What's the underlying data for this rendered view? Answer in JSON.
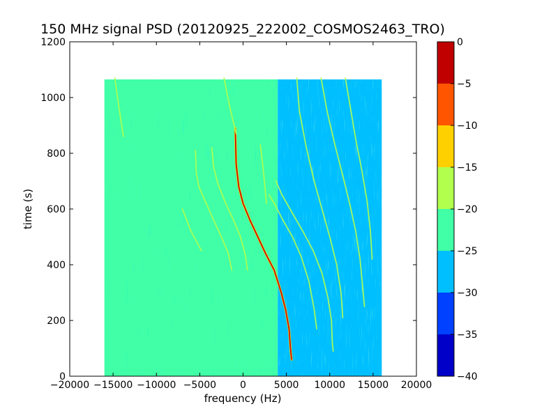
{
  "chart_data": {
    "type": "heatmap",
    "title": "150 MHz signal PSD (20120925_222002_COSMOS2463_TRO)",
    "xlabel": "frequency (Hz)",
    "ylabel": "time (s)",
    "xlim": [
      -20000,
      20000
    ],
    "ylim": [
      0,
      1200
    ],
    "x_ticks": [
      -20000,
      -15000,
      -10000,
      -5000,
      0,
      5000,
      10000,
      15000,
      20000
    ],
    "x_tick_labels": [
      "−20000",
      "−15000",
      "−10000",
      "−5000",
      "0",
      "5000",
      "10000",
      "15000",
      "20000"
    ],
    "y_ticks": [
      0,
      200,
      400,
      600,
      800,
      1000,
      1200
    ],
    "y_tick_labels": [
      "0",
      "200",
      "400",
      "600",
      "800",
      "1000",
      "1200"
    ],
    "data_extent": {
      "x": [
        -16000,
        16000
      ],
      "y": [
        0,
        1065
      ]
    },
    "background_levels": [
      {
        "x_range": [
          -16000,
          4000
        ],
        "level": -22.5
      },
      {
        "x_range": [
          4000,
          16000
        ],
        "level": -27.5
      }
    ],
    "colorbar": {
      "levels": [
        -40,
        -35,
        -30,
        -25,
        -20,
        -15,
        -10,
        -5,
        0
      ],
      "tick_labels": [
        "−40",
        "−35",
        "−30",
        "−25",
        "−20",
        "−15",
        "−10",
        "−5",
        "0"
      ],
      "colors": [
        "#0000c8",
        "#0040ff",
        "#00bfff",
        "#40ffa6",
        "#b2ff4d",
        "#ffd000",
        "#ff5500",
        "#c00000"
      ]
    },
    "grid": false,
    "traces": [
      {
        "level": -2.5,
        "points": [
          [
            -900,
            890
          ],
          [
            -800,
            760
          ],
          [
            -500,
            680
          ],
          [
            0,
            620
          ],
          [
            800,
            560
          ],
          [
            1700,
            500
          ],
          [
            2600,
            440
          ],
          [
            3600,
            380
          ],
          [
            4400,
            300
          ],
          [
            4900,
            240
          ],
          [
            5300,
            170
          ],
          [
            5500,
            90
          ],
          [
            5600,
            60
          ]
        ]
      },
      {
        "level": -17.5,
        "points": [
          [
            3000,
            650
          ],
          [
            3600,
            620
          ],
          [
            4600,
            560
          ],
          [
            5700,
            500
          ],
          [
            6700,
            430
          ],
          [
            7600,
            340
          ],
          [
            8200,
            240
          ],
          [
            8500,
            170
          ]
        ]
      },
      {
        "level": -17.5,
        "points": [
          [
            3800,
            700
          ],
          [
            4500,
            650
          ],
          [
            5600,
            590
          ],
          [
            6900,
            520
          ],
          [
            8100,
            450
          ],
          [
            9100,
            370
          ],
          [
            9800,
            280
          ],
          [
            10200,
            200
          ],
          [
            10300,
            120
          ],
          [
            10400,
            90
          ]
        ]
      },
      {
        "level": -17.5,
        "points": [
          [
            -5500,
            810
          ],
          [
            -5400,
            730
          ],
          [
            -5100,
            680
          ],
          [
            -4400,
            630
          ],
          [
            -3400,
            560
          ],
          [
            -2500,
            500
          ],
          [
            -1700,
            440
          ],
          [
            -1300,
            380
          ]
        ]
      },
      {
        "level": -17.5,
        "points": [
          [
            -3600,
            820
          ],
          [
            -3400,
            750
          ],
          [
            -2900,
            690
          ],
          [
            -2000,
            620
          ],
          [
            -1100,
            560
          ],
          [
            -300,
            500
          ],
          [
            300,
            430
          ],
          [
            500,
            380
          ]
        ]
      },
      {
        "level": -17.5,
        "points": [
          [
            6200,
            1070
          ],
          [
            6500,
            950
          ],
          [
            7300,
            820
          ],
          [
            8200,
            700
          ],
          [
            9100,
            600
          ],
          [
            10000,
            500
          ],
          [
            10800,
            400
          ],
          [
            11300,
            300
          ],
          [
            11500,
            210
          ]
        ]
      },
      {
        "level": -17.5,
        "points": [
          [
            9000,
            1070
          ],
          [
            9700,
            950
          ],
          [
            10600,
            830
          ],
          [
            11500,
            720
          ],
          [
            12300,
            620
          ],
          [
            13000,
            520
          ],
          [
            13500,
            420
          ],
          [
            13800,
            320
          ],
          [
            14000,
            250
          ]
        ]
      },
      {
        "level": -17.5,
        "points": [
          [
            11800,
            1070
          ],
          [
            12400,
            960
          ],
          [
            13000,
            850
          ],
          [
            13700,
            740
          ],
          [
            14300,
            630
          ],
          [
            14700,
            520
          ],
          [
            14900,
            420
          ]
        ]
      },
      {
        "level": -17.5,
        "points": [
          [
            -2200,
            1070
          ],
          [
            -1500,
            960
          ],
          [
            -800,
            870
          ]
        ]
      },
      {
        "level": -17.5,
        "points": [
          [
            -7000,
            600
          ],
          [
            -6000,
            520
          ],
          [
            -4800,
            450
          ]
        ]
      },
      {
        "level": -17.5,
        "points": [
          [
            2000,
            830
          ],
          [
            2400,
            720
          ],
          [
            2700,
            620
          ]
        ]
      },
      {
        "level": -17.5,
        "points": [
          [
            -14800,
            1070
          ],
          [
            -14300,
            960
          ],
          [
            -13800,
            860
          ]
        ]
      }
    ]
  }
}
